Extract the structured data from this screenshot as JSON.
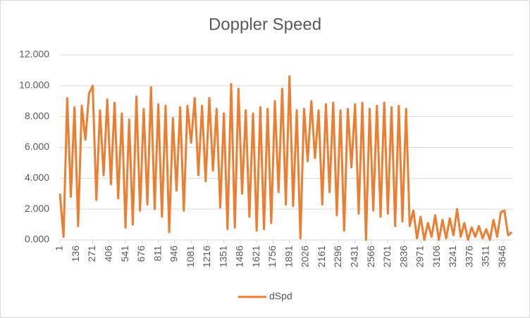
{
  "chart_data": {
    "type": "line",
    "title": "Doppler Speed",
    "x": [
      1,
      31,
      61,
      91,
      121,
      151,
      181,
      211,
      241,
      271,
      301,
      331,
      361,
      391,
      421,
      451,
      481,
      511,
      541,
      571,
      601,
      631,
      661,
      691,
      721,
      751,
      781,
      811,
      841,
      871,
      901,
      931,
      961,
      991,
      1021,
      1051,
      1081,
      1111,
      1141,
      1171,
      1201,
      1231,
      1261,
      1291,
      1321,
      1351,
      1381,
      1411,
      1441,
      1471,
      1501,
      1531,
      1561,
      1591,
      1621,
      1651,
      1681,
      1711,
      1741,
      1771,
      1801,
      1831,
      1861,
      1891,
      1921,
      1951,
      1981,
      2011,
      2041,
      2071,
      2101,
      2131,
      2161,
      2191,
      2221,
      2251,
      2281,
      2311,
      2341,
      2371,
      2401,
      2431,
      2461,
      2491,
      2521,
      2551,
      2581,
      2611,
      2641,
      2671,
      2701,
      2731,
      2761,
      2791,
      2821,
      2851,
      2881,
      2911,
      2941,
      2971,
      3001,
      3031,
      3061,
      3091,
      3121,
      3151,
      3181,
      3211,
      3241,
      3271,
      3301,
      3331,
      3361,
      3391,
      3421,
      3451,
      3481,
      3511,
      3541,
      3571,
      3601,
      3631,
      3661,
      3691,
      3721
    ],
    "series": [
      {
        "name": "dSpd",
        "color": "#ed7d31",
        "values": [
          3.0,
          0.2,
          9.2,
          2.8,
          8.6,
          0.9,
          8.7,
          6.5,
          9.5,
          10.0,
          2.6,
          8.4,
          4.2,
          9.1,
          3.6,
          8.9,
          2.7,
          8.2,
          0.8,
          7.8,
          1.0,
          9.3,
          1.9,
          8.5,
          2.3,
          9.9,
          2.0,
          8.8,
          1.5,
          8.7,
          0.5,
          7.9,
          3.2,
          8.6,
          1.9,
          8.7,
          6.3,
          9.2,
          4.2,
          8.7,
          3.8,
          9.2,
          4.5,
          8.5,
          2.1,
          8.2,
          0.7,
          10.1,
          0.8,
          9.8,
          3.0,
          8.4,
          1.5,
          8.2,
          0.6,
          8.6,
          0.7,
          8.5,
          1.1,
          9.0,
          3.1,
          9.8,
          2.3,
          10.6,
          2.2,
          8.4,
          0.1,
          8.5,
          5.1,
          9.0,
          5.3,
          8.4,
          2.3,
          8.8,
          3.1,
          8.9,
          1.6,
          8.4,
          0.6,
          8.5,
          4.7,
          8.8,
          1.7,
          8.9,
          0.0,
          8.5,
          1.9,
          8.7,
          1.5,
          8.9,
          1.7,
          8.6,
          0.9,
          8.7,
          1.2,
          8.5,
          0.9,
          1.9,
          0.1,
          1.5,
          0.0,
          1.1,
          0.2,
          1.6,
          0.0,
          1.3,
          0.1,
          1.4,
          0.3,
          2.0,
          0.2,
          1.1,
          0.0,
          0.8,
          0.2,
          0.9,
          0.1,
          0.7,
          0.0,
          1.3,
          0.2,
          1.8,
          1.9,
          0.3,
          0.5
        ]
      }
    ],
    "xlim": [
      1,
      3732
    ],
    "xticks": [
      1,
      136,
      271,
      406,
      541,
      676,
      811,
      946,
      1081,
      1216,
      1351,
      1486,
      1621,
      1756,
      1891,
      2026,
      2161,
      2296,
      2431,
      2566,
      2701,
      2836,
      2971,
      3106,
      3241,
      3376,
      3511,
      3646
    ],
    "ylim": [
      0,
      12
    ],
    "yticks": [
      {
        "value": 0,
        "label": "0.000"
      },
      {
        "value": 2,
        "label": "2.000"
      },
      {
        "value": 4,
        "label": "4.000"
      },
      {
        "value": 6,
        "label": "6.000"
      },
      {
        "value": 8,
        "label": "8.000"
      },
      {
        "value": 10,
        "label": "10.000"
      },
      {
        "value": 12,
        "label": "12.000"
      }
    ],
    "grid": true
  }
}
